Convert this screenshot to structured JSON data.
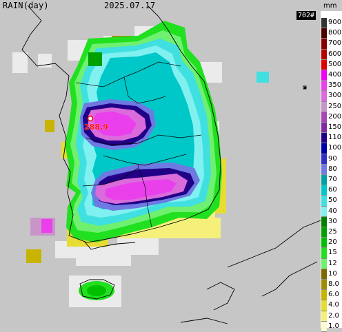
{
  "header": {
    "title": "RAIN(day)",
    "date": "2025.07.17",
    "badge": "702#",
    "unit": "mm"
  },
  "station": {
    "value": "288.9",
    "marker_color": "#ff0000"
  },
  "legend": {
    "labels": [
      "900",
      "800",
      "700",
      "600",
      "500",
      "400",
      "350",
      "300",
      "250",
      "200",
      "150",
      "110",
      "100",
      "90",
      "80",
      "70",
      "60",
      "50",
      "40",
      "30",
      "25",
      "20",
      "15",
      "12",
      "10",
      "8.0",
      "6.0",
      "4.0",
      "2.0",
      "1.0"
    ],
    "colors": [
      "#333333",
      "#4d0000",
      "#860000",
      "#b30000",
      "#dd0000",
      "#f200f2",
      "#ea40ec",
      "#da6bdb",
      "#c895c9",
      "#a946b7",
      "#7e2aa1",
      "#210087",
      "#0000a9",
      "#3030c8",
      "#6e79e2",
      "#00a0a0",
      "#00c8c8",
      "#40e0e0",
      "#80f0f0",
      "#008000",
      "#00a000",
      "#00c000",
      "#20e020",
      "#70f070",
      "#7c6a00",
      "#a08c00",
      "#c8b400",
      "#e6dc32",
      "#f5f07a",
      "#fffbd0"
    ]
  }
}
